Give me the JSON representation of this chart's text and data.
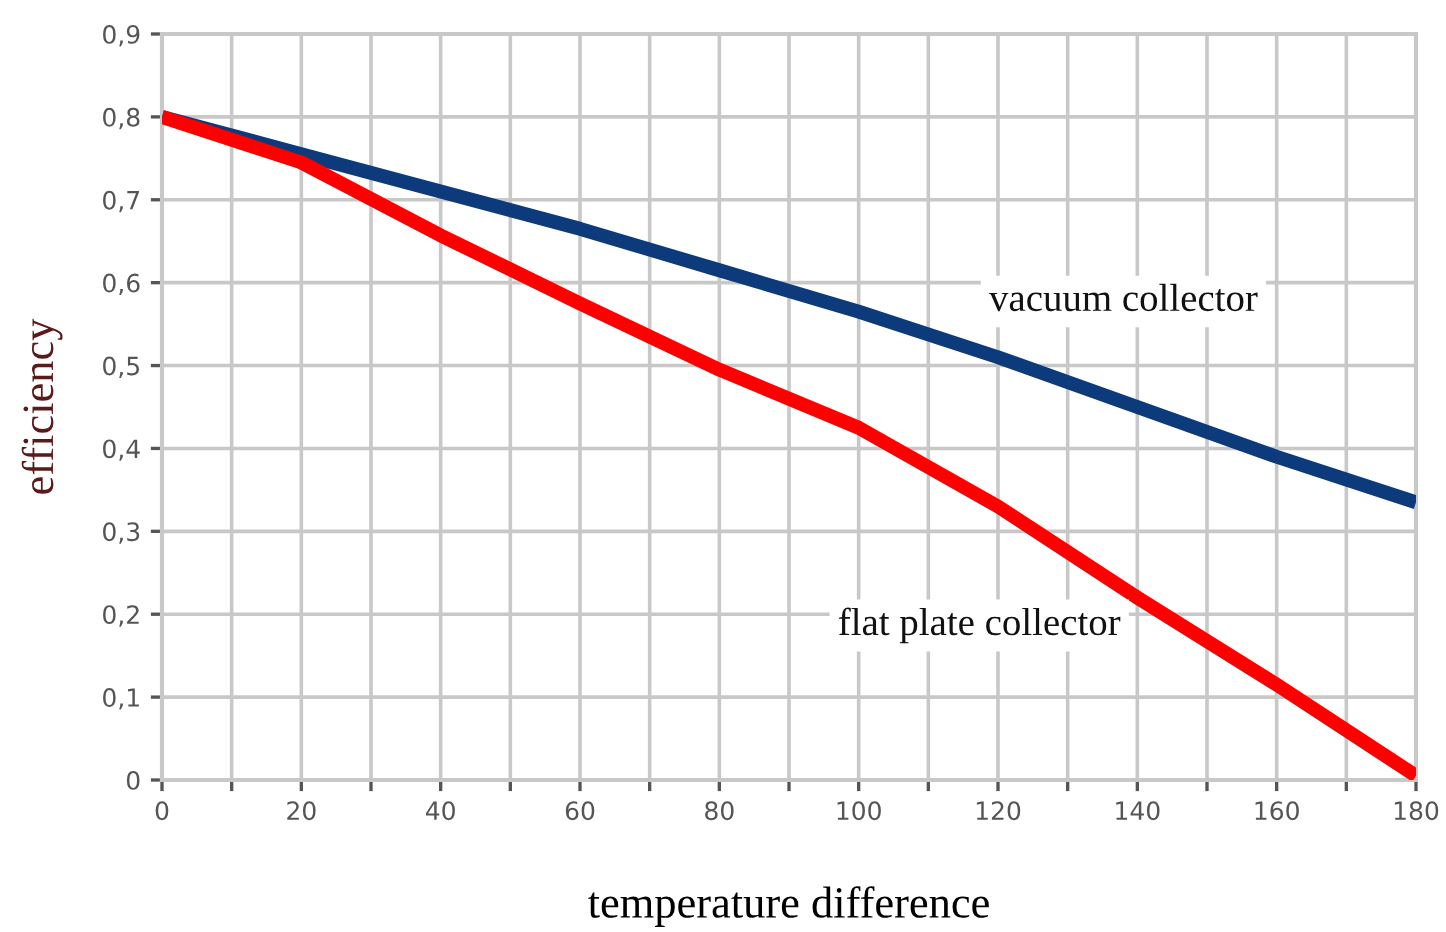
{
  "chart_data": {
    "type": "line",
    "xlabel": "temperature difference",
    "ylabel": "efficiency",
    "x": [
      0,
      20,
      40,
      60,
      80,
      100,
      120,
      140,
      160,
      180
    ],
    "series": [
      {
        "name": "vacuum collector",
        "color": "#0d3a7a",
        "values": [
          0.8,
          0.755,
          0.71,
          0.665,
          0.615,
          0.565,
          0.51,
          0.45,
          0.39,
          0.335
        ]
      },
      {
        "name": "flat plate collector",
        "color": "#ff0000",
        "values": [
          0.8,
          0.745,
          0.657,
          0.575,
          0.495,
          0.425,
          0.33,
          0.22,
          0.115,
          0.005
        ]
      }
    ],
    "xlim": [
      0,
      180
    ],
    "xticks": [
      0,
      {
        "value": 10,
        "label": null
      },
      20,
      {
        "value": 30,
        "label": null
      },
      40,
      {
        "value": 50,
        "label": null
      },
      60,
      {
        "value": 70,
        "label": null
      },
      80,
      {
        "value": 90,
        "label": null
      },
      100,
      {
        "value": 110,
        "label": null
      },
      120,
      {
        "value": 130,
        "label": null
      },
      140,
      {
        "value": 150,
        "label": null
      },
      160,
      {
        "value": 170,
        "label": null
      },
      180
    ],
    "ylim": [
      0,
      0.9
    ],
    "yticks": [
      {
        "value": 0,
        "label": "0"
      },
      {
        "value": 0.1,
        "label": "0,1"
      },
      {
        "value": 0.2,
        "label": "0,2"
      },
      {
        "value": 0.3,
        "label": "0,3"
      },
      {
        "value": 0.4,
        "label": "0,4"
      },
      {
        "value": 0.5,
        "label": "0,5"
      },
      {
        "value": 0.6,
        "label": "0,6"
      },
      {
        "value": 0.7,
        "label": "0,7"
      },
      {
        "value": 0.8,
        "label": "0,8"
      },
      {
        "value": 0.9,
        "label": "0,9"
      }
    ],
    "grid": true,
    "legend": false,
    "line_style": "solid",
    "marker": "none"
  }
}
